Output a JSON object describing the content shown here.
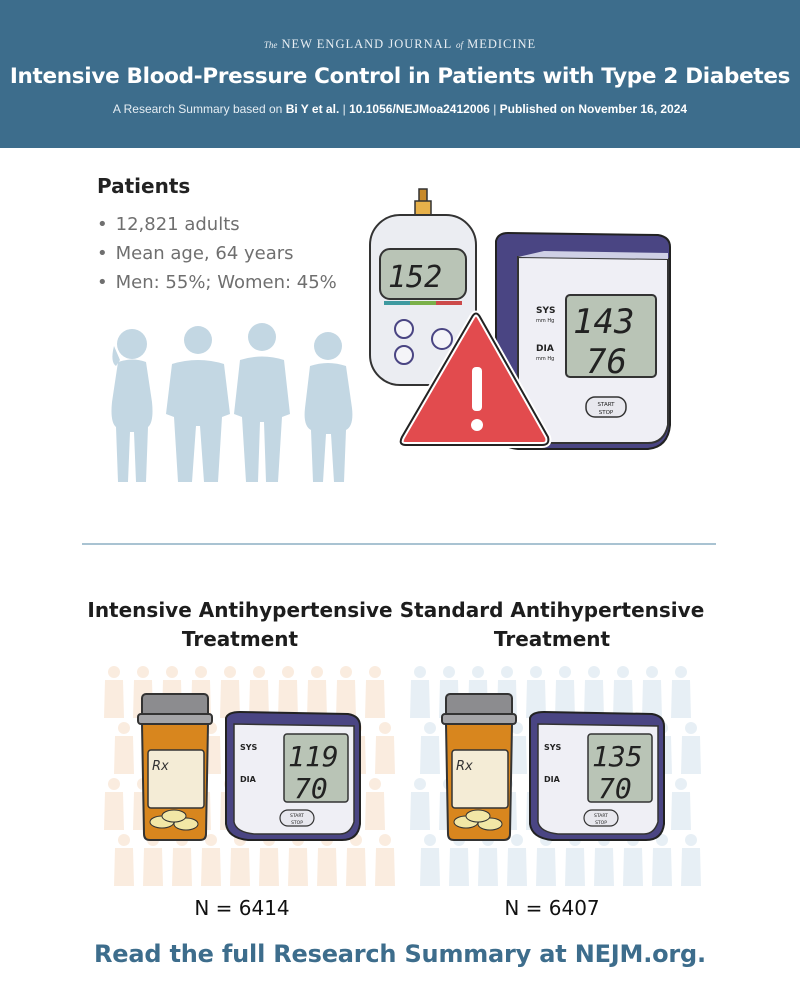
{
  "header": {
    "masthead_the": "The",
    "masthead_main": "NEW ENGLAND JOURNAL",
    "masthead_of": "of",
    "masthead_end": "MEDICINE",
    "title": "Intensive Blood-Pressure Control in Patients with Type 2 Diabetes",
    "subtitle_prefix": "A Research Summary based on",
    "subtitle_authors": "Bi Y et al.",
    "subtitle_doi": "10.1056/NEJMoa2412006",
    "subtitle_published": "Published on November 16, 2024",
    "background_color": "#3d6d8c"
  },
  "patients": {
    "heading": "Patients",
    "items": [
      "12,821 adults",
      "Mean age, 64 years",
      "Men: 55%; Women: 45%"
    ]
  },
  "devices": {
    "glucose_reading": "152",
    "monitor_sys_label": "SYS",
    "monitor_dia_label": "DIA",
    "monitor_unit": "mm Hg",
    "monitor_sys": "143",
    "monitor_dia": "76",
    "start_label": "START",
    "stop_label": "STOP",
    "warning_icon": "warning-triangle-icon"
  },
  "arms": [
    {
      "title_line1": "Intensive Antihypertensive",
      "title_line2": "Treatment",
      "rx": "Rx",
      "sys": "119",
      "dia": "70",
      "n": "N = 6414",
      "accent": "#f3c9a4"
    },
    {
      "title_line1": "Standard Antihypertensive",
      "title_line2": "Treatment",
      "rx": "Rx",
      "sys": "135",
      "dia": "70",
      "n": "N = 6407",
      "accent": "#bcd3e3"
    }
  ],
  "footer": {
    "text": "Read the full Research Summary at NEJM.org."
  }
}
